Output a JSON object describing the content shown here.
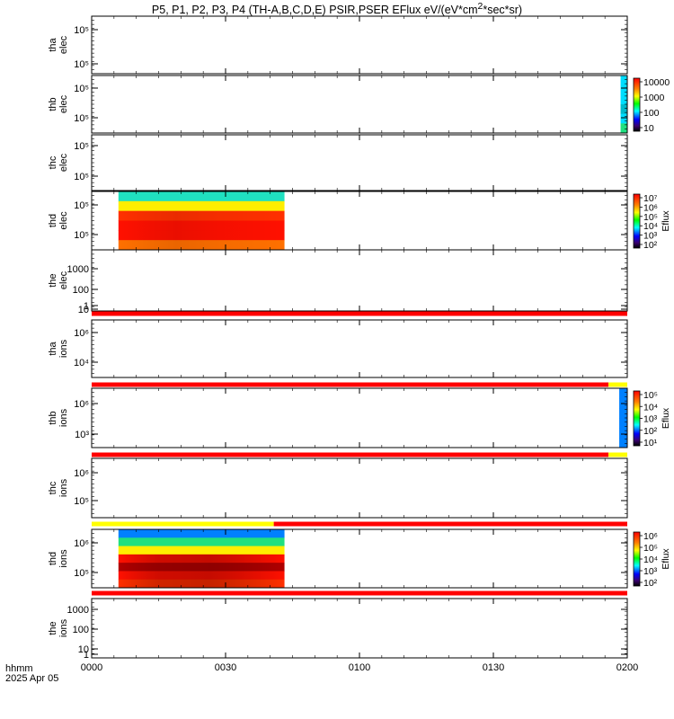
{
  "title_html": "P5, P1, P2, P3, P4 (TH-A,B,C,D,E) PSIR,PSER EFlux eV/(eV*cm<sup>2</sup>*sec*sr)",
  "x_axis": {
    "label_line1": "hhmm",
    "label_line2": "2025 Apr 05",
    "range_hours": [
      0,
      2
    ],
    "ticks": [
      {
        "value": 0.0,
        "label": "0000"
      },
      {
        "value": 0.5,
        "label": "0030"
      },
      {
        "value": 1.0,
        "label": "0100"
      },
      {
        "value": 1.5,
        "label": "0130"
      },
      {
        "value": 2.0,
        "label": "0200"
      }
    ]
  },
  "colors": {
    "flag_red": "#ff0000",
    "flag_yellow": "#ffff00",
    "axis": "#000000"
  },
  "chart_data": [
    {
      "type": "heatmap",
      "probe": "tha",
      "species": "elec",
      "ylabel": [
        "tha",
        "elec"
      ],
      "yticks": [
        {
          "exp": 5,
          "label": "10⁵"
        },
        {
          "exp": 5,
          "label": "10⁵"
        }
      ],
      "data_present": false,
      "status_flag": null,
      "colorbar": null
    },
    {
      "type": "heatmap",
      "probe": "thb",
      "species": "elec",
      "ylabel": [
        "thb",
        "elec"
      ],
      "yticks": [
        {
          "label": "10⁵"
        },
        {
          "label": "10⁵"
        }
      ],
      "data_present": true,
      "time_range_hours": [
        1.975,
        2.0
      ],
      "spectrum_bands_top_to_bottom": [
        "cyan",
        "cyan",
        "cyan",
        "teal",
        "cyan",
        "green"
      ],
      "status_flag": null,
      "colorbar": {
        "scale": "log",
        "ticks": [
          "10000",
          "1000",
          "100",
          "10"
        ],
        "label": ""
      }
    },
    {
      "type": "heatmap",
      "probe": "thc",
      "species": "elec",
      "ylabel": [
        "thc",
        "elec"
      ],
      "yticks": [
        {
          "label": "10⁵"
        },
        {
          "label": "10⁵"
        }
      ],
      "data_present": false,
      "status_flag": null,
      "colorbar": null
    },
    {
      "type": "heatmap",
      "probe": "thd",
      "species": "elec",
      "ylabel": [
        "thd",
        "elec"
      ],
      "yticks": [
        {
          "label": "10⁵"
        },
        {
          "label": "10⁵"
        }
      ],
      "data_present": true,
      "time_range_hours": [
        0.1,
        0.72
      ],
      "spectrum_bands_top_to_bottom": [
        "cyan-green",
        "yellow",
        "orange-red",
        "red",
        "red",
        "orange"
      ],
      "status_flag": null,
      "colorbar": {
        "scale": "log",
        "ticks": [
          "10⁷",
          "10⁶",
          "10⁵",
          "10⁴",
          "10³",
          "10²"
        ],
        "label": "Eflux"
      }
    },
    {
      "type": "heatmap",
      "probe": "the",
      "species": "elec",
      "ylabel": [
        "the",
        "elec"
      ],
      "yticks": [
        {
          "label": "1000"
        },
        {
          "label": "100"
        },
        {
          "label": "10"
        },
        {
          "label": "1"
        }
      ],
      "data_present": false,
      "status_flag": [
        {
          "from": 0.0,
          "to": 2.0,
          "color": "red"
        }
      ],
      "colorbar": null
    },
    {
      "type": "heatmap",
      "probe": "tha",
      "species": "ions",
      "ylabel": [
        "tha",
        "ions"
      ],
      "yticks": [
        {
          "label": "10⁶"
        },
        {
          "label": "10⁴"
        }
      ],
      "data_present": false,
      "status_flag": [
        {
          "from": 0.0,
          "to": 1.93,
          "color": "red"
        },
        {
          "from": 1.93,
          "to": 2.0,
          "color": "yellow"
        }
      ],
      "colorbar": null
    },
    {
      "type": "heatmap",
      "probe": "thb",
      "species": "ions",
      "ylabel": [
        "thb",
        "ions"
      ],
      "yticks": [
        {
          "label": "10⁶"
        },
        {
          "label": "10³"
        }
      ],
      "data_present": true,
      "time_range_hours": [
        1.97,
        2.0
      ],
      "spectrum_bands_top_to_bottom": [
        "blue",
        "blue",
        "blue",
        "blue",
        "blue",
        "blue"
      ],
      "status_flag": [
        {
          "from": 0.0,
          "to": 1.93,
          "color": "red"
        },
        {
          "from": 1.93,
          "to": 2.0,
          "color": "yellow"
        }
      ],
      "colorbar": {
        "scale": "log",
        "ticks": [
          "10⁵",
          "10⁴",
          "10³",
          "10²",
          "10¹"
        ],
        "label": "Eflux"
      }
    },
    {
      "type": "heatmap",
      "probe": "thc",
      "species": "ions",
      "ylabel": [
        "thc",
        "ions"
      ],
      "yticks": [
        {
          "label": "10⁶"
        },
        {
          "label": "10⁵"
        }
      ],
      "data_present": false,
      "status_flag": [
        {
          "from": 0.0,
          "to": 0.68,
          "color": "yellow"
        },
        {
          "from": 0.68,
          "to": 2.0,
          "color": "red"
        }
      ],
      "colorbar": null
    },
    {
      "type": "heatmap",
      "probe": "thd",
      "species": "ions",
      "ylabel": [
        "thd",
        "ions"
      ],
      "yticks": [
        {
          "label": "10⁶"
        },
        {
          "label": "10⁵"
        }
      ],
      "data_present": true,
      "time_range_hours": [
        0.1,
        0.72
      ],
      "spectrum_bands_top_to_bottom": [
        "blue",
        "green",
        "yellow",
        "red",
        "dark red",
        "red",
        "orange-red"
      ],
      "status_flag": [
        {
          "from": 0.0,
          "to": 2.0,
          "color": "red"
        }
      ],
      "colorbar": {
        "scale": "log",
        "ticks": [
          "10⁶",
          "10⁵",
          "10⁴",
          "10³",
          "10²"
        ],
        "label": "Eflux"
      }
    },
    {
      "type": "heatmap",
      "probe": "the",
      "species": "ions",
      "ylabel": [
        "the",
        "ions"
      ],
      "yticks": [
        {
          "label": "1000"
        },
        {
          "label": "100"
        },
        {
          "label": "10"
        },
        {
          "label": "1"
        }
      ],
      "data_present": false,
      "status_flag": null,
      "colorbar": null
    }
  ]
}
